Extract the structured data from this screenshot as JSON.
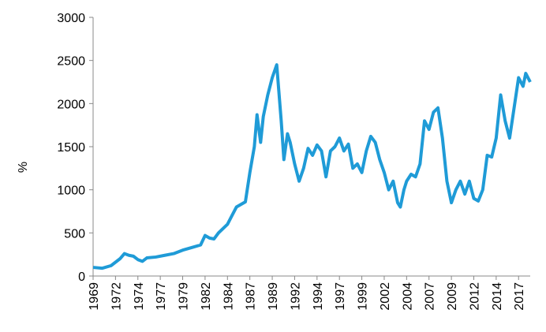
{
  "chart_data": {
    "type": "line",
    "ylabel": "%",
    "x": [
      1969,
      1970,
      1971,
      1972,
      1972.5,
      1973,
      1973.5,
      1974,
      1974.5,
      1975,
      1976,
      1977,
      1978,
      1979,
      1980,
      1981,
      1981.5,
      1982,
      1982.5,
      1983,
      1984,
      1984.5,
      1985,
      1986,
      1986.5,
      1987,
      1987.3,
      1987.7,
      1988,
      1988.5,
      1989,
      1989.5,
      1990,
      1990.3,
      1990.7,
      1991,
      1991.5,
      1992,
      1992.5,
      1993,
      1993.5,
      1994,
      1994.5,
      1995,
      1995.5,
      1996,
      1996.5,
      1997,
      1997.5,
      1998,
      1998.5,
      1999,
      1999.5,
      2000,
      2000.5,
      2001,
      2001.5,
      2002,
      2002.5,
      2003,
      2003.3,
      2003.7,
      2004,
      2004.5,
      2005,
      2005.5,
      2006,
      2006.5,
      2007,
      2007.5,
      2008,
      2008.5,
      2009,
      2009.5,
      2010,
      2010.5,
      2011,
      2011.5,
      2012,
      2012.5,
      2013,
      2013.5,
      2014,
      2014.5,
      2015,
      2015.5,
      2016,
      2016.5,
      2017,
      2017.3,
      2017.8
    ],
    "series": [
      {
        "color": "#1f9bd7",
        "values": [
          100,
          90,
          120,
          200,
          260,
          240,
          230,
          190,
          170,
          210,
          220,
          240,
          260,
          300,
          330,
          360,
          470,
          440,
          430,
          500,
          600,
          700,
          800,
          860,
          1200,
          1500,
          1870,
          1550,
          1850,
          2100,
          2300,
          2450,
          1800,
          1350,
          1650,
          1550,
          1300,
          1100,
          1250,
          1480,
          1400,
          1520,
          1450,
          1150,
          1450,
          1500,
          1600,
          1450,
          1530,
          1250,
          1300,
          1200,
          1450,
          1620,
          1550,
          1350,
          1200,
          1000,
          1100,
          850,
          800,
          1000,
          1100,
          1180,
          1150,
          1300,
          1800,
          1700,
          1900,
          1950,
          1600,
          1100,
          850,
          1000,
          1100,
          950,
          1100,
          900,
          870,
          1000,
          1400,
          1380,
          1600,
          2100,
          1800,
          1600,
          1950,
          2300,
          2200,
          2350,
          2250
        ]
      }
    ],
    "xlim": [
      1969,
      2017.8
    ],
    "xticks": [
      1969,
      {
        "value": 1971.5,
        "label": "1972"
      },
      1974,
      {
        "value": 1976.5,
        "label": "1977"
      },
      1979,
      {
        "value": 1981.5,
        "label": "1982"
      },
      1984,
      {
        "value": 1986.5,
        "label": "1987"
      },
      1989,
      {
        "value": 1991.5,
        "label": "1992"
      },
      1994,
      {
        "value": 1996.5,
        "label": "1997"
      },
      1999,
      {
        "value": 2001.5,
        "label": "2002"
      },
      2004,
      {
        "value": 2006.5,
        "label": "2007"
      },
      2009,
      {
        "value": 2011.5,
        "label": "2012"
      },
      2014,
      {
        "value": 2016.5,
        "label": "2017"
      }
    ],
    "ylim": [
      0,
      3000
    ],
    "yticks": [
      0,
      500,
      1000,
      1500,
      2000,
      2500,
      3000
    ]
  }
}
